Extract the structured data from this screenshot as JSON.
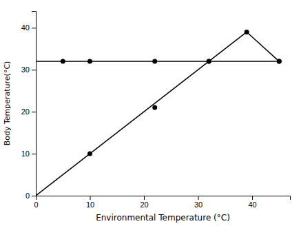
{
  "chart_data": {
    "type": "scatter",
    "xlabel": "Environmental Temperature (°C)",
    "ylabel": "Body Temperature(°C)",
    "xlim": [
      0,
      47
    ],
    "ylim": [
      0,
      44
    ],
    "xticks": [
      0,
      10,
      20,
      30,
      40
    ],
    "yticks": [
      0,
      10,
      20,
      30,
      40
    ],
    "grid": false,
    "series": [
      {
        "type": "line",
        "color": "#000000",
        "x": [
          0,
          45
        ],
        "values": [
          32,
          32
        ]
      },
      {
        "type": "line",
        "color": "#000000",
        "x": [
          0,
          39
        ],
        "values": [
          0,
          39
        ]
      },
      {
        "type": "line",
        "color": "#000000",
        "x": [
          39,
          45
        ],
        "values": [
          39,
          32
        ]
      },
      {
        "type": "scatter",
        "color": "#000000",
        "x": [
          5,
          10,
          22,
          32,
          45
        ],
        "values": [
          32,
          32,
          32,
          32,
          32
        ]
      },
      {
        "type": "scatter",
        "color": "#000000",
        "x": [
          10,
          22,
          32,
          39,
          45
        ],
        "values": [
          10,
          21,
          32,
          39,
          32
        ]
      }
    ]
  }
}
